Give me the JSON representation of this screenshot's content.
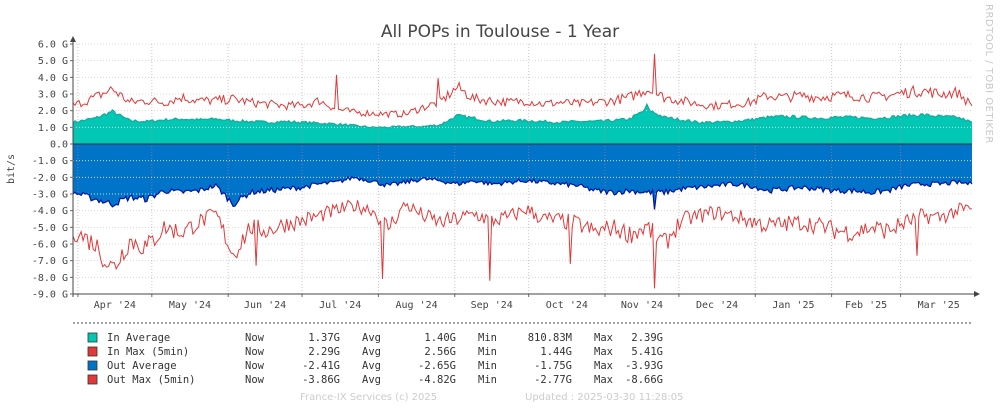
{
  "chart_data": {
    "type": "area",
    "title": "All POPs in Toulouse - 1 Year",
    "ylabel": "bit/s",
    "ylim": [
      -9,
      6
    ],
    "yticks": [
      {
        "v": 6,
        "label": "6.0 G"
      },
      {
        "v": 5,
        "label": "5.0 G"
      },
      {
        "v": 4,
        "label": "4.0 G"
      },
      {
        "v": 3,
        "label": "3.0 G"
      },
      {
        "v": 2,
        "label": "2.0 G"
      },
      {
        "v": 1,
        "label": "1.0 G"
      },
      {
        "v": 0,
        "label": "0.0"
      },
      {
        "v": -1,
        "label": "-1.0 G"
      },
      {
        "v": -2,
        "label": "-2.0 G"
      },
      {
        "v": -3,
        "label": "-3.0 G"
      },
      {
        "v": -4,
        "label": "-4.0 G"
      },
      {
        "v": -5,
        "label": "-5.0 G"
      },
      {
        "v": -6,
        "label": "-6.0 G"
      },
      {
        "v": -7,
        "label": "-7.0 G"
      },
      {
        "v": -8,
        "label": "-8.0 G"
      },
      {
        "v": -9,
        "label": "-9.0 G"
      }
    ],
    "xrange": [
      "2024-03-30",
      "2025-03-30"
    ],
    "months": [
      {
        "date": "2024-04-01",
        "label": "Apr '24"
      },
      {
        "date": "2024-05-01",
        "label": "May '24"
      },
      {
        "date": "2024-06-01",
        "label": "Jun '24"
      },
      {
        "date": "2024-07-01",
        "label": "Jul '24"
      },
      {
        "date": "2024-08-01",
        "label": "Aug '24"
      },
      {
        "date": "2024-09-01",
        "label": "Sep '24"
      },
      {
        "date": "2024-10-01",
        "label": "Oct '24"
      },
      {
        "date": "2024-11-01",
        "label": "Nov '24"
      },
      {
        "date": "2024-12-01",
        "label": "Dec '24"
      },
      {
        "date": "2025-01-01",
        "label": "Jan '25"
      },
      {
        "date": "2025-02-01",
        "label": "Feb '25"
      },
      {
        "date": "2025-03-01",
        "label": "Mar '25"
      },
      {
        "date": "2025-04-01",
        "label": ""
      }
    ],
    "grid": true,
    "series": [
      {
        "name": "In Average",
        "color": "#00c8b4",
        "x": [
          "2024-03-30",
          "2024-04-08",
          "2024-04-15",
          "2024-04-22",
          "2024-04-29",
          "2024-05-06",
          "2024-05-13",
          "2024-05-20",
          "2024-05-27",
          "2024-06-03",
          "2024-06-10",
          "2024-06-17",
          "2024-06-24",
          "2024-07-01",
          "2024-07-08",
          "2024-07-15",
          "2024-07-22",
          "2024-07-29",
          "2024-08-05",
          "2024-08-12",
          "2024-08-19",
          "2024-08-26",
          "2024-09-02",
          "2024-09-09",
          "2024-09-16",
          "2024-09-23",
          "2024-09-30",
          "2024-10-07",
          "2024-10-14",
          "2024-10-21",
          "2024-10-28",
          "2024-11-04",
          "2024-11-11",
          "2024-11-18",
          "2024-11-25",
          "2024-12-02",
          "2024-12-09",
          "2024-12-16",
          "2024-12-23",
          "2024-12-30",
          "2025-01-06",
          "2025-01-13",
          "2025-01-20",
          "2025-01-27",
          "2025-02-03",
          "2025-02-10",
          "2025-02-17",
          "2025-02-24",
          "2025-03-03",
          "2025-03-10",
          "2025-03-17",
          "2025-03-24",
          "2025-03-30"
        ],
        "y": [
          1.3,
          1.55,
          1.95,
          1.4,
          1.35,
          1.45,
          1.5,
          1.45,
          1.5,
          1.4,
          1.35,
          1.3,
          1.35,
          1.3,
          1.25,
          1.2,
          1.1,
          1.0,
          1.0,
          1.05,
          1.05,
          1.15,
          1.7,
          1.55,
          1.35,
          1.4,
          1.4,
          1.35,
          1.3,
          1.35,
          1.35,
          1.4,
          1.5,
          2.1,
          1.6,
          1.45,
          1.3,
          1.3,
          1.35,
          1.45,
          1.6,
          1.65,
          1.6,
          1.55,
          1.6,
          1.6,
          1.55,
          1.6,
          1.7,
          1.75,
          1.65,
          1.6,
          1.3
        ]
      },
      {
        "name": "In Max (5min)",
        "color": "#e23838",
        "x": [
          "2024-03-30",
          "2024-04-08",
          "2024-04-15",
          "2024-04-22",
          "2024-04-29",
          "2024-05-06",
          "2024-05-13",
          "2024-05-20",
          "2024-05-27",
          "2024-06-03",
          "2024-06-10",
          "2024-06-17",
          "2024-06-24",
          "2024-07-01",
          "2024-07-08",
          "2024-07-15",
          "2024-07-22",
          "2024-07-29",
          "2024-08-05",
          "2024-08-12",
          "2024-08-19",
          "2024-08-26",
          "2024-09-02",
          "2024-09-09",
          "2024-09-16",
          "2024-09-23",
          "2024-09-30",
          "2024-10-07",
          "2024-10-14",
          "2024-10-21",
          "2024-10-28",
          "2024-11-04",
          "2024-11-11",
          "2024-11-18",
          "2024-11-25",
          "2024-12-02",
          "2024-12-09",
          "2024-12-16",
          "2024-12-23",
          "2024-12-30",
          "2025-01-06",
          "2025-01-13",
          "2025-01-20",
          "2025-01-27",
          "2025-02-03",
          "2025-02-10",
          "2025-02-17",
          "2025-02-24",
          "2025-03-03",
          "2025-03-10",
          "2025-03-17",
          "2025-03-24",
          "2025-03-30"
        ],
        "y": [
          2.3,
          2.8,
          3.3,
          2.5,
          2.6,
          2.5,
          2.8,
          2.6,
          2.6,
          2.7,
          2.5,
          2.4,
          2.3,
          2.3,
          2.6,
          2.1,
          1.9,
          1.85,
          1.8,
          1.8,
          2.2,
          2.5,
          3.4,
          2.7,
          2.6,
          2.5,
          2.6,
          2.4,
          2.5,
          2.4,
          2.5,
          2.6,
          2.8,
          3.3,
          2.8,
          2.6,
          2.4,
          2.3,
          2.4,
          2.5,
          2.9,
          2.8,
          2.9,
          2.8,
          2.9,
          2.9,
          2.8,
          2.9,
          3.1,
          3.2,
          3.0,
          3.1,
          2.3
        ]
      },
      {
        "name": "Out Average",
        "color": "#0074c8",
        "x": [
          "2024-03-30",
          "2024-04-08",
          "2024-04-15",
          "2024-04-22",
          "2024-04-29",
          "2024-05-06",
          "2024-05-13",
          "2024-05-20",
          "2024-05-27",
          "2024-06-03",
          "2024-06-10",
          "2024-06-17",
          "2024-06-24",
          "2024-07-01",
          "2024-07-08",
          "2024-07-15",
          "2024-07-22",
          "2024-07-29",
          "2024-08-05",
          "2024-08-12",
          "2024-08-19",
          "2024-08-26",
          "2024-09-02",
          "2024-09-09",
          "2024-09-16",
          "2024-09-23",
          "2024-09-30",
          "2024-10-07",
          "2024-10-14",
          "2024-10-21",
          "2024-10-28",
          "2024-11-04",
          "2024-11-11",
          "2024-11-18",
          "2024-11-25",
          "2024-12-02",
          "2024-12-09",
          "2024-12-16",
          "2024-12-23",
          "2024-12-30",
          "2025-01-06",
          "2025-01-13",
          "2025-01-20",
          "2025-01-27",
          "2025-02-03",
          "2025-02-10",
          "2025-02-17",
          "2025-02-24",
          "2025-03-03",
          "2025-03-10",
          "2025-03-17",
          "2025-03-24",
          "2025-03-30"
        ],
        "y": [
          -2.9,
          -3.3,
          -3.6,
          -3.2,
          -3.3,
          -2.8,
          -2.9,
          -2.8,
          -2.5,
          -3.6,
          -2.9,
          -2.8,
          -2.7,
          -2.6,
          -2.4,
          -2.3,
          -2.0,
          -2.2,
          -2.5,
          -2.3,
          -2.1,
          -2.2,
          -2.4,
          -2.2,
          -2.4,
          -2.3,
          -2.2,
          -2.3,
          -2.4,
          -2.5,
          -2.8,
          -2.9,
          -2.8,
          -2.9,
          -2.9,
          -2.7,
          -2.6,
          -2.5,
          -2.4,
          -2.5,
          -2.8,
          -2.7,
          -2.6,
          -2.7,
          -2.8,
          -2.8,
          -2.9,
          -2.8,
          -2.5,
          -2.4,
          -2.4,
          -2.3,
          -2.4
        ]
      },
      {
        "name": "Out Max (5min)",
        "color": "#e23838",
        "x": [
          "2024-03-30",
          "2024-04-08",
          "2024-04-15",
          "2024-04-22",
          "2024-04-29",
          "2024-05-06",
          "2024-05-13",
          "2024-05-20",
          "2024-05-27",
          "2024-06-03",
          "2024-06-10",
          "2024-06-17",
          "2024-06-24",
          "2024-07-01",
          "2024-07-08",
          "2024-07-15",
          "2024-07-22",
          "2024-07-29",
          "2024-08-05",
          "2024-08-12",
          "2024-08-19",
          "2024-08-26",
          "2024-09-02",
          "2024-09-09",
          "2024-09-16",
          "2024-09-23",
          "2024-09-30",
          "2024-10-07",
          "2024-10-14",
          "2024-10-21",
          "2024-10-28",
          "2024-11-04",
          "2024-11-11",
          "2024-11-18",
          "2024-11-25",
          "2024-12-02",
          "2024-12-09",
          "2024-12-16",
          "2024-12-23",
          "2024-12-30",
          "2025-01-06",
          "2025-01-13",
          "2025-01-20",
          "2025-01-27",
          "2025-02-03",
          "2025-02-10",
          "2025-02-17",
          "2025-02-24",
          "2025-03-03",
          "2025-03-10",
          "2025-03-17",
          "2025-03-24",
          "2025-03-30"
        ],
        "y": [
          -5.2,
          -6.0,
          -7.5,
          -5.8,
          -6.2,
          -5.0,
          -5.3,
          -4.7,
          -4.2,
          -6.6,
          -5.0,
          -5.2,
          -4.8,
          -4.6,
          -4.3,
          -4.0,
          -3.7,
          -3.9,
          -5.0,
          -3.6,
          -4.3,
          -4.7,
          -4.5,
          -4.2,
          -4.6,
          -4.4,
          -3.9,
          -4.5,
          -4.6,
          -4.8,
          -5.3,
          -5.0,
          -5.4,
          -5.0,
          -6.0,
          -4.6,
          -4.3,
          -4.1,
          -4.3,
          -4.6,
          -4.9,
          -4.8,
          -4.7,
          -4.9,
          -5.2,
          -5.3,
          -5.0,
          -5.2,
          -4.7,
          -4.3,
          -4.4,
          -4.0,
          -3.9
        ]
      }
    ],
    "spikes": [
      {
        "series": "In Max (5min)",
        "x": "2024-07-15",
        "y": 4.15
      },
      {
        "series": "In Max (5min)",
        "x": "2024-08-25",
        "y": 3.95
      },
      {
        "series": "In Max (5min)",
        "x": "2024-11-21",
        "y": 5.41
      },
      {
        "series": "In Average",
        "x": "2024-11-18",
        "y": 2.39
      },
      {
        "series": "Out Max (5min)",
        "x": "2024-06-12",
        "y": -7.3
      },
      {
        "series": "Out Max (5min)",
        "x": "2024-08-03",
        "y": -8.1
      },
      {
        "series": "Out Max (5min)",
        "x": "2024-09-15",
        "y": -8.2
      },
      {
        "series": "Out Max (5min)",
        "x": "2024-10-18",
        "y": -7.2
      },
      {
        "series": "Out Max (5min)",
        "x": "2024-11-21",
        "y": -8.66
      },
      {
        "series": "Out Max (5min)",
        "x": "2025-03-08",
        "y": -6.7
      },
      {
        "series": "Out Average",
        "x": "2024-11-21",
        "y": -3.93
      }
    ]
  },
  "legend": [
    {
      "name": "In Average",
      "now": "1.37G",
      "avg": "1.40G",
      "min": "810.83M",
      "max": "2.39G",
      "color": "#00c8b4"
    },
    {
      "name": "In Max (5min)",
      "now": "2.29G",
      "avg": "2.56G",
      "min": "1.44G",
      "max": "5.41G",
      "color": "#e23838"
    },
    {
      "name": "Out Average",
      "now": "-2.41G",
      "avg": "-2.65G",
      "min": "-1.75G",
      "max": "-3.93G",
      "color": "#0074c8"
    },
    {
      "name": "Out Max (5min)",
      "now": "-3.86G",
      "avg": "-4.82G",
      "min": "-2.77G",
      "max": "-8.66G",
      "color": "#e23838"
    }
  ],
  "legend_labels": {
    "now": "Now",
    "avg": "Avg",
    "min": "Min",
    "max": "Max"
  },
  "watermark": "RRDTOOL / TOBI OETIKER",
  "footer": {
    "credit": "France-IX Services (c) 2025",
    "updated": "Updated : 2025-03-30 11:28:05"
  }
}
